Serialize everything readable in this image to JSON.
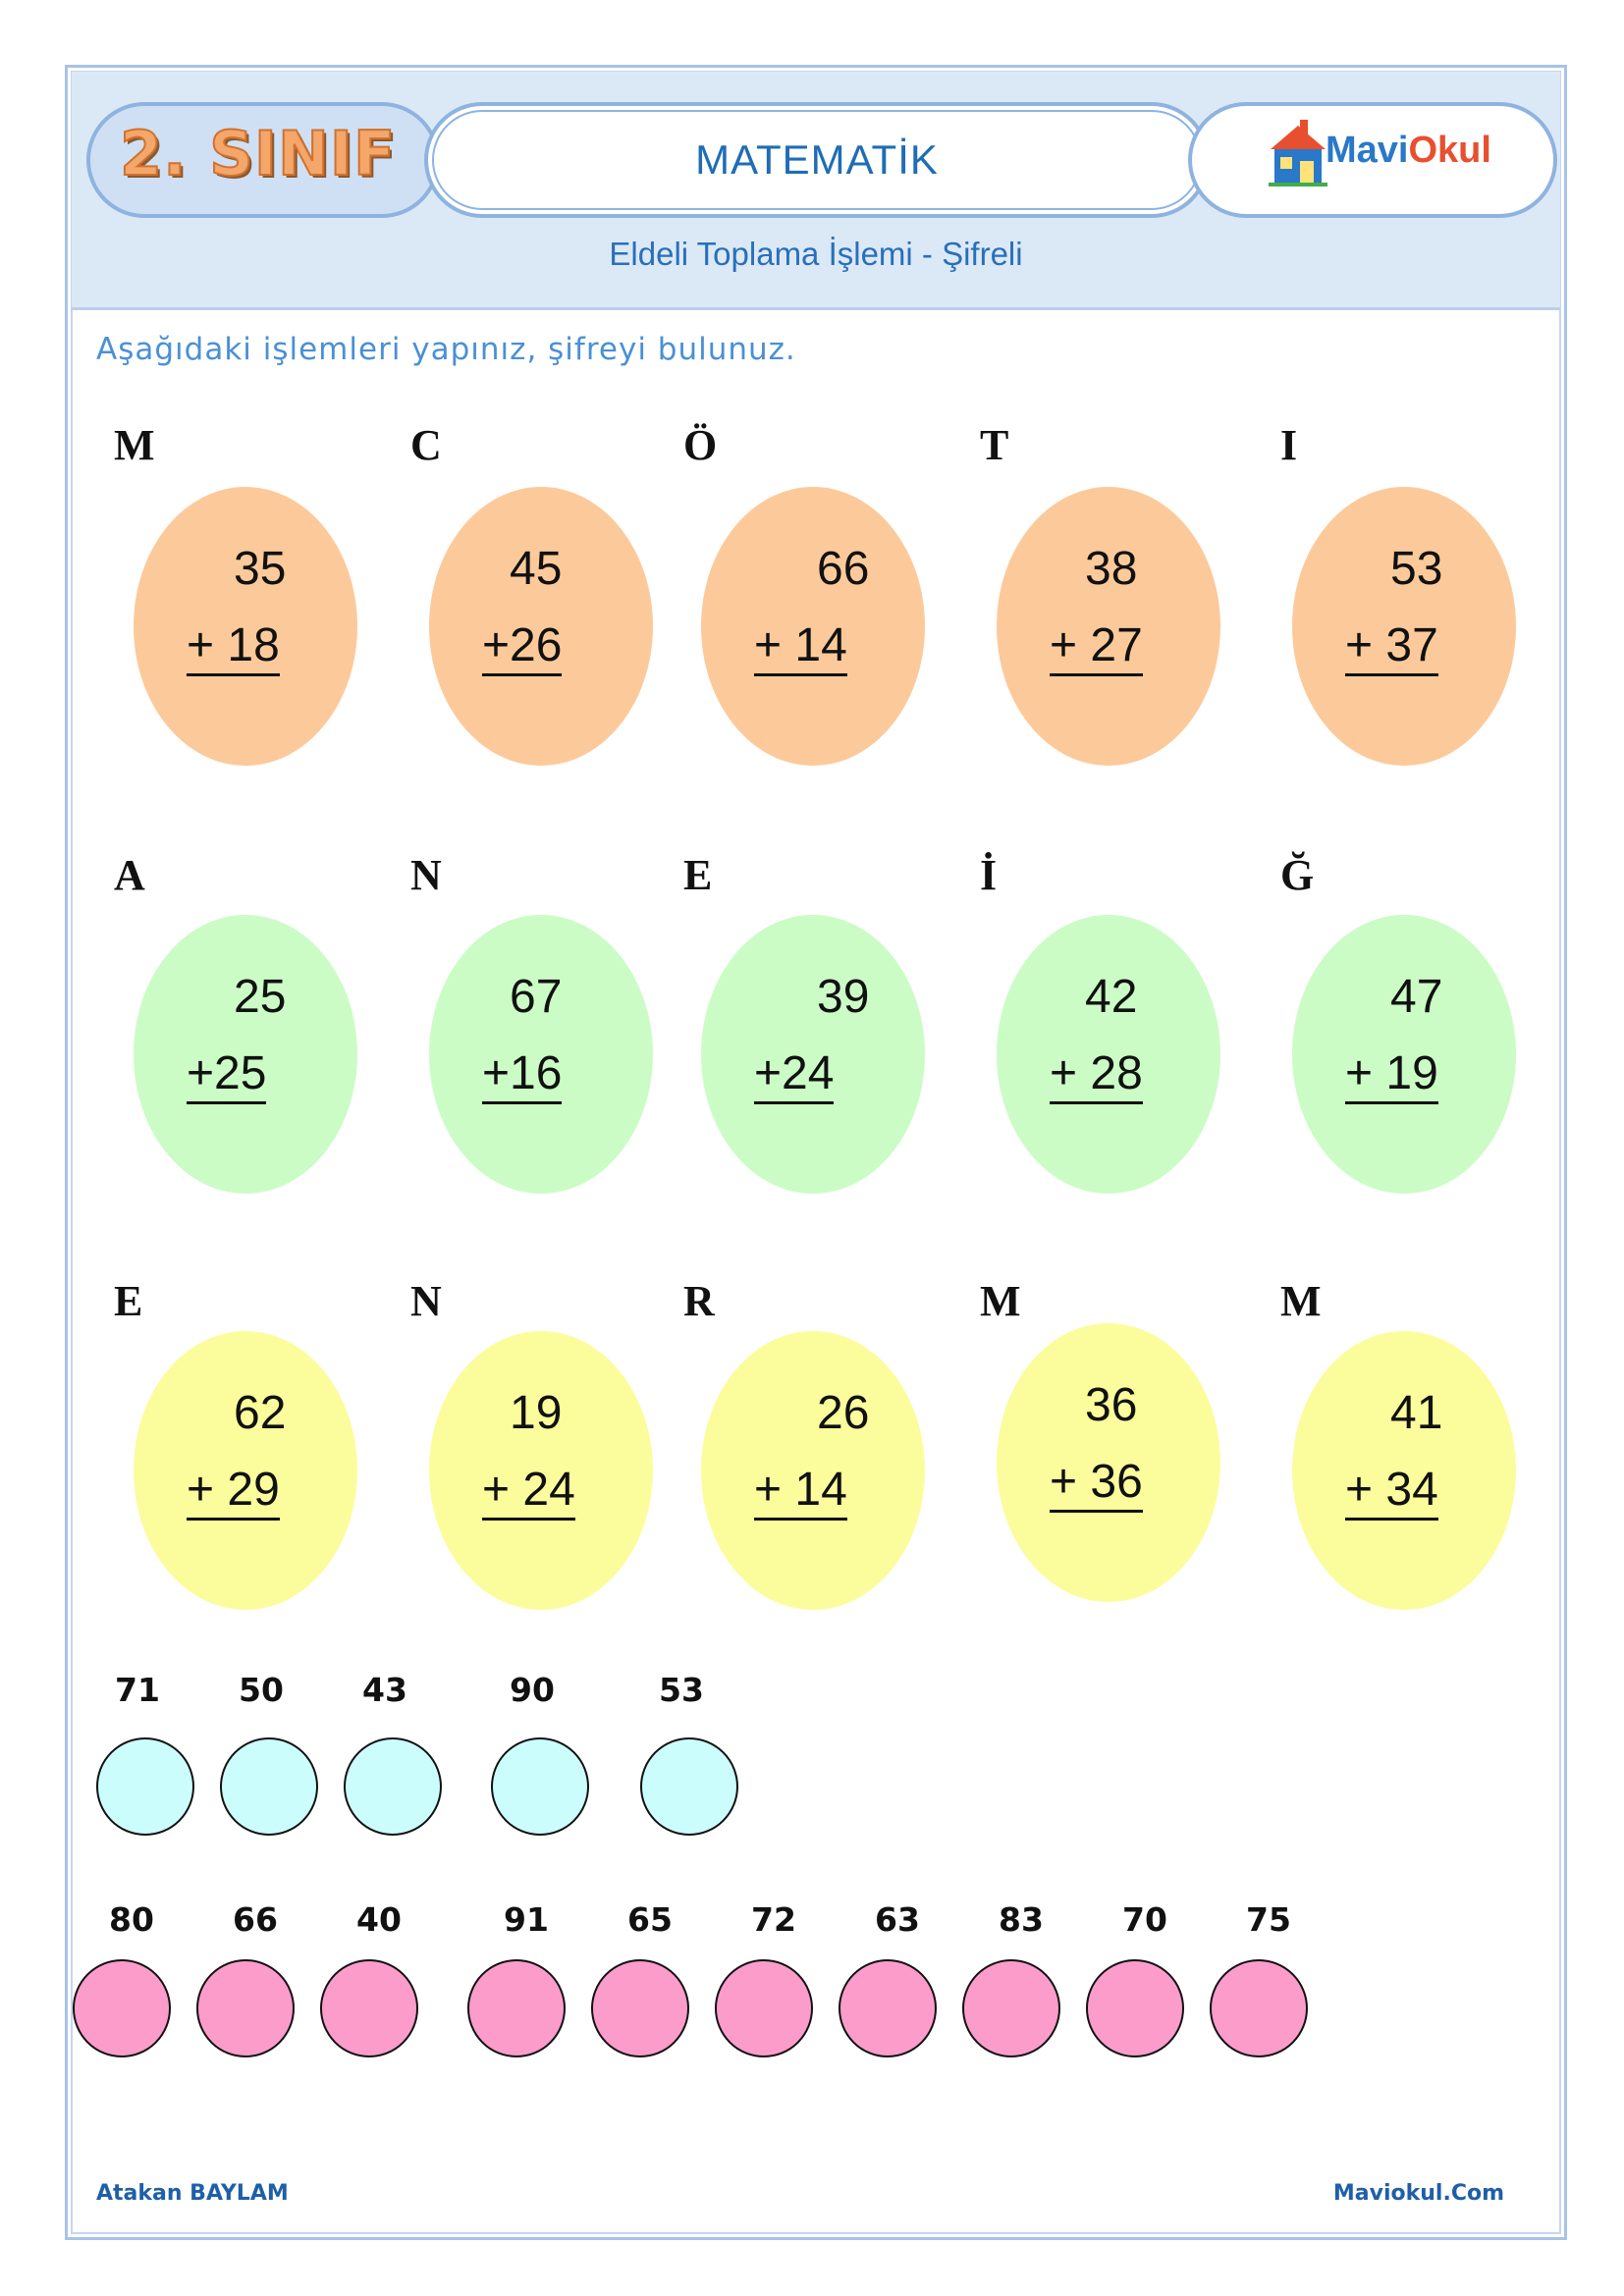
{
  "header": {
    "grade": "2. SINIF",
    "subject": "MATEMATİK",
    "logo": {
      "part1": "Mavi",
      "part2": "Okul"
    },
    "subtitle": "Eldeli Toplama İşlemi - Şifreli"
  },
  "instruction": "Aşağıdaki işlemleri yapınız, şifreyi bulunuz.",
  "colors": {
    "orange_egg": "#fcca9a",
    "green_egg": "#ccfcc6",
    "yellow_egg": "#fbfd9c",
    "answer_cyan": "#ccfdfd",
    "answer_pink": "#fc9ccb"
  },
  "problems": [
    {
      "letter": "M",
      "top": "35",
      "bottom": "+ 18",
      "color": "orange"
    },
    {
      "letter": "C",
      "top": "45",
      "bottom": "+26",
      "color": "orange"
    },
    {
      "letter": "Ö",
      "top": "66",
      "bottom": "+ 14",
      "color": "orange"
    },
    {
      "letter": "T",
      "top": "38",
      "bottom": "+ 27",
      "color": "orange"
    },
    {
      "letter": "I",
      "top": "53",
      "bottom": "+ 37",
      "color": "orange"
    },
    {
      "letter": "A",
      "top": "25",
      "bottom": "+25",
      "color": "green"
    },
    {
      "letter": "N",
      "top": "67",
      "bottom": "+16",
      "color": "green"
    },
    {
      "letter": "E",
      "top": "39",
      "bottom": "+24",
      "color": "green"
    },
    {
      "letter": "İ",
      "top": "42",
      "bottom": "+ 28",
      "color": "green"
    },
    {
      "letter": "Ğ",
      "top": "47",
      "bottom": "+ 19",
      "color": "green"
    },
    {
      "letter": "E",
      "top": "62",
      "bottom": "+ 29",
      "color": "yellow"
    },
    {
      "letter": "N",
      "top": "19",
      "bottom": "+ 24",
      "color": "yellow"
    },
    {
      "letter": "R",
      "top": "26",
      "bottom": "+ 14",
      "color": "yellow"
    },
    {
      "letter": "M",
      "top": "36",
      "bottom": "+ 36",
      "color": "yellow"
    },
    {
      "letter": "M",
      "top": "41",
      "bottom": "+ 34",
      "color": "yellow"
    }
  ],
  "answers_row1": [
    "71",
    "50",
    "43",
    "90",
    "53"
  ],
  "answers_row2": [
    "80",
    "66",
    "40",
    "91",
    "65",
    "72",
    "63",
    "83",
    "70",
    "75"
  ],
  "footer": {
    "author": "Atakan BAYLAM",
    "site": "Maviokul.Com"
  }
}
